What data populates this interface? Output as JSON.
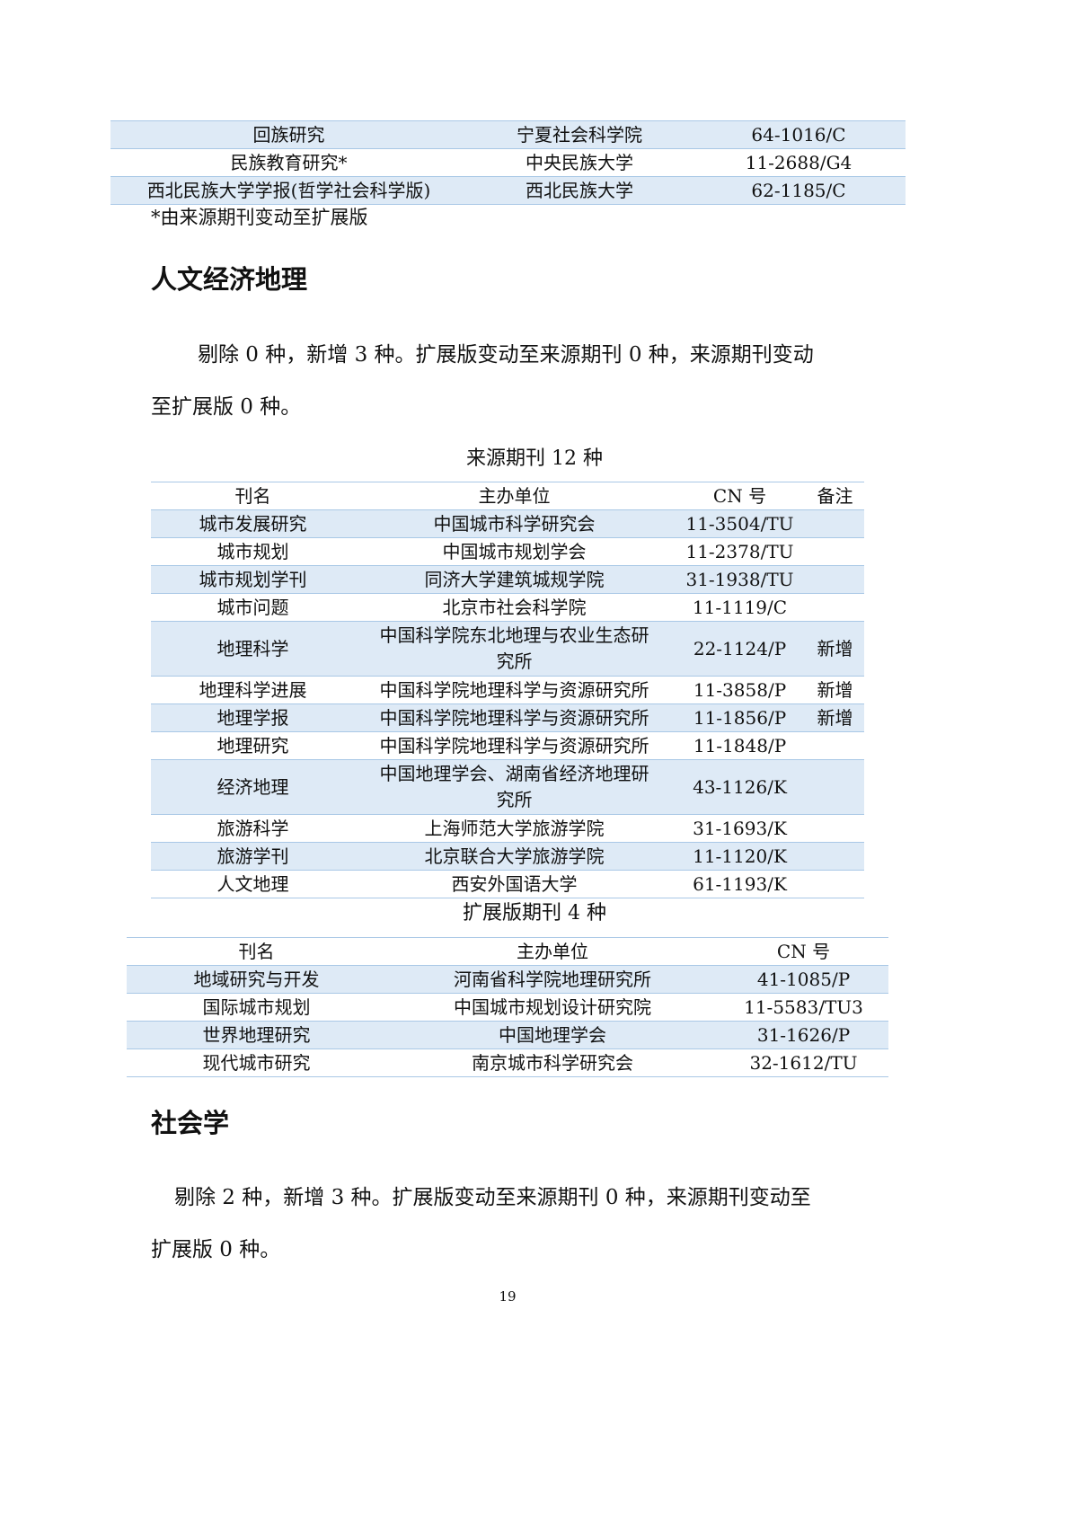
{
  "top_table": {
    "rows": [
      {
        "name": "回族研究",
        "unit": "宁夏社会科学院",
        "cn": "64-1016/C"
      },
      {
        "name": "民族教育研究*",
        "unit": "中央民族大学",
        "cn": "11-2688/G4"
      },
      {
        "name": "西北民族大学学报(哲学社会科学版)",
        "unit": "西北民族大学",
        "cn": "62-1185/C"
      }
    ],
    "footnote": "*由来源期刊变动至扩展版"
  },
  "section1": {
    "title": "人文经济地理",
    "para_line1": "剔除 0 种，新增 3 种。扩展版变动至来源期刊 0 种，来源期刊变动",
    "para_line2": "至扩展版 0 种。",
    "source_caption": "来源期刊 12 种",
    "source_headers": [
      "刊名",
      "主办单位",
      "CN 号",
      "备注"
    ],
    "source_rows": [
      {
        "name": "城市发展研究",
        "unit": "中国城市科学研究会",
        "cn": "11-3504/TU",
        "note": ""
      },
      {
        "name": "城市规划",
        "unit": "中国城市规划学会",
        "cn": "11-2378/TU",
        "note": ""
      },
      {
        "name": "城市规划学刊",
        "unit": "同济大学建筑城规学院",
        "cn": "31-1938/TU",
        "note": ""
      },
      {
        "name": "城市问题",
        "unit": "北京市社会科学院",
        "cn": "11-1119/C",
        "note": ""
      },
      {
        "name": "地理科学",
        "unit": "中国科学院东北地理与农业生态研究所",
        "cn": "22-1124/P",
        "note": "新增"
      },
      {
        "name": "地理科学进展",
        "unit": "中国科学院地理科学与资源研究所",
        "cn": "11-3858/P",
        "note": "新增"
      },
      {
        "name": "地理学报",
        "unit": "中国科学院地理科学与资源研究所",
        "cn": "11-1856/P",
        "note": "新增"
      },
      {
        "name": "地理研究",
        "unit": "中国科学院地理科学与资源研究所",
        "cn": "11-1848/P",
        "note": ""
      },
      {
        "name": "经济地理",
        "unit": "中国地理学会、湖南省经济地理研究所",
        "cn": "43-1126/K",
        "note": ""
      },
      {
        "name": "旅游科学",
        "unit": "上海师范大学旅游学院",
        "cn": "31-1693/K",
        "note": ""
      },
      {
        "name": "旅游学刊",
        "unit": "北京联合大学旅游学院",
        "cn": "11-1120/K",
        "note": ""
      },
      {
        "name": "人文地理",
        "unit": "西安外国语大学",
        "cn": "61-1193/K",
        "note": ""
      }
    ],
    "ext_caption": "扩展版期刊 4 种",
    "ext_headers": [
      "刊名",
      "主办单位",
      "CN 号"
    ],
    "ext_rows": [
      {
        "name": "地域研究与开发",
        "unit": "河南省科学院地理研究所",
        "cn": "41-1085/P"
      },
      {
        "name": "国际城市规划",
        "unit": "中国城市规划设计研究院",
        "cn": "11-5583/TU3"
      },
      {
        "name": "世界地理研究",
        "unit": "中国地理学会",
        "cn": "31-1626/P"
      },
      {
        "name": "现代城市研究",
        "unit": "南京城市科学研究会",
        "cn": "32-1612/TU"
      }
    ]
  },
  "section2": {
    "title": "社会学",
    "para_line1": "剔除 2 种，新增 3 种。扩展版变动至来源期刊 0 种，来源期刊变动至",
    "para_line2": "扩展版 0 种。"
  },
  "page_number": "19",
  "colors": {
    "row_shade": "#deeaf6",
    "border": "#a9c8e6"
  }
}
